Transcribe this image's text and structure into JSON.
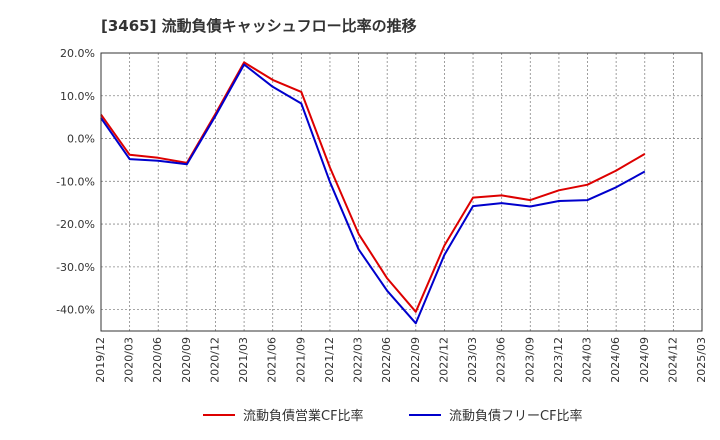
{
  "chart_data": {
    "type": "line",
    "title": "[3465]  流動負債キャッシュフロー比率の推移",
    "xlabel": "",
    "ylabel": "",
    "ylim": [
      -45,
      20
    ],
    "yticks": [
      20,
      10,
      0,
      -10,
      -20,
      -30,
      -40
    ],
    "ytick_labels": [
      "20.0%",
      "10.0%",
      "0.0%",
      "-10.0%",
      "-20.0%",
      "-30.0%",
      "-40.0%"
    ],
    "categories": [
      "2019/12",
      "2020/03",
      "2020/06",
      "2020/09",
      "2020/12",
      "2021/03",
      "2021/06",
      "2021/09",
      "2021/12",
      "2022/03",
      "2022/06",
      "2022/09",
      "2022/12",
      "2023/03",
      "2023/06",
      "2023/09",
      "2023/12",
      "2024/03",
      "2024/06",
      "2024/09",
      "2024/12",
      "2025/03"
    ],
    "grid": true,
    "legend_position": "bottom",
    "series": [
      {
        "name": "流動負債営業CF比率",
        "color": "#dd0000",
        "values": [
          5.6,
          -3.8,
          -4.5,
          -5.7,
          5.8,
          17.8,
          13.7,
          10.9,
          -6.8,
          -22.3,
          -32.7,
          -40.5,
          -25.0,
          -13.8,
          -13.3,
          -14.4,
          -12.1,
          -10.8,
          -7.5,
          -3.6,
          null,
          null
        ]
      },
      {
        "name": "流動負債フリーCF比率",
        "color": "#0000cc",
        "values": [
          4.8,
          -4.8,
          -5.2,
          -6.0,
          5.3,
          17.3,
          12.1,
          8.2,
          -10.2,
          -25.9,
          -35.6,
          -43.2,
          -27.2,
          -15.8,
          -15.1,
          -15.9,
          -14.6,
          -14.4,
          -11.4,
          -7.7,
          null,
          null
        ]
      }
    ]
  }
}
